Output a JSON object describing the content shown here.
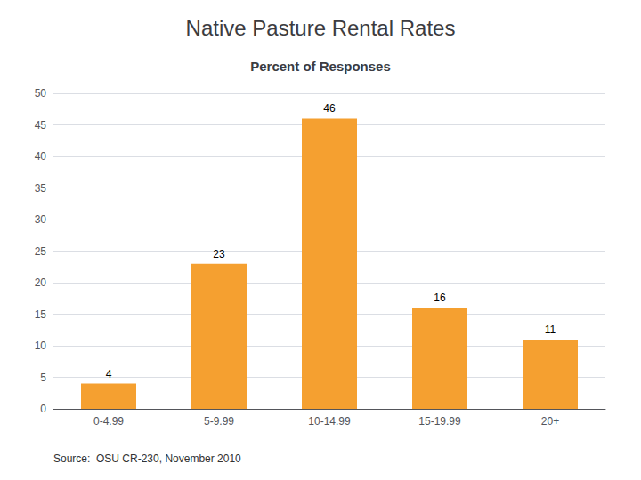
{
  "chart_data": {
    "type": "bar",
    "title": "Native Pasture Rental Rates",
    "subtitle": "Percent of Responses",
    "annotations": [
      "Source:  OSU CR-230, November 2010"
    ],
    "categories": [
      "0-4.99",
      "5-9.99",
      "10-14.99",
      "15-19.99",
      "20+"
    ],
    "values": [
      4,
      23,
      46,
      16,
      11
    ],
    "color": "#F5A030",
    "ylim": [
      0,
      50
    ],
    "yticks": [
      0,
      5,
      10,
      15,
      20,
      25,
      30,
      35,
      40,
      45,
      50
    ],
    "grid": true,
    "data_labels": true
  }
}
